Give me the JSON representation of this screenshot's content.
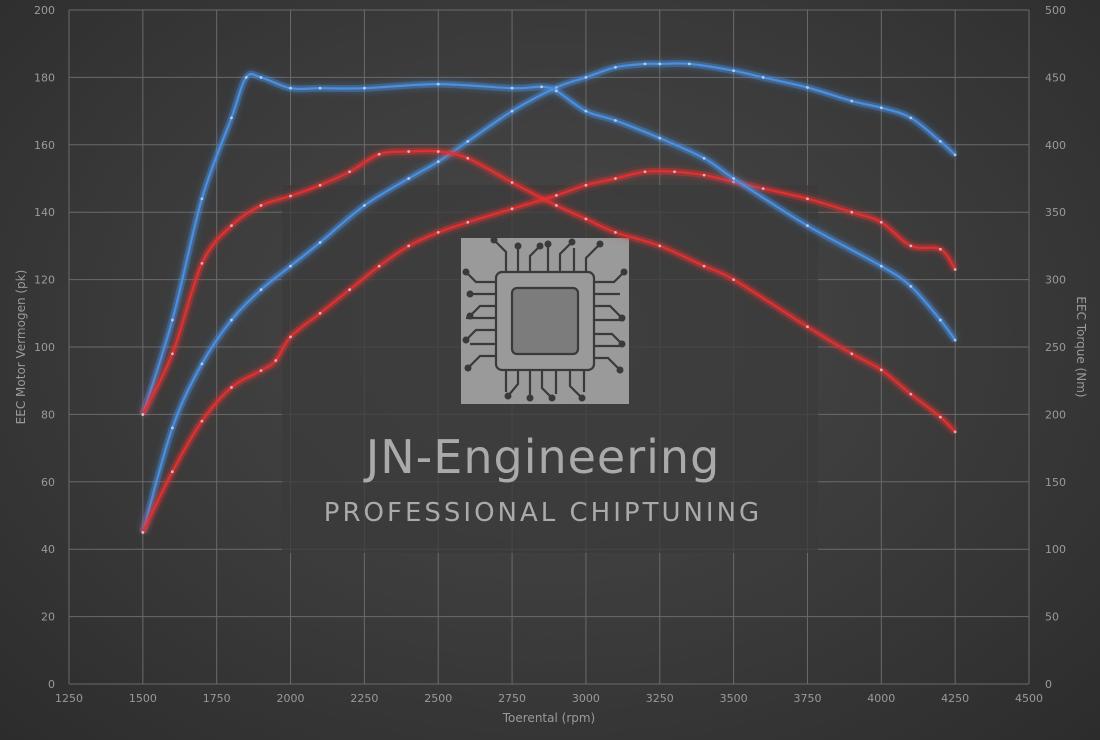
{
  "chart_data": {
    "type": "line",
    "xlabel": "Toerental (rpm)",
    "ylabel_left": "EEC Motor Vermogen (pk)",
    "ylabel_right": "EEC Torque (Nm)",
    "xlim": [
      1250,
      4500
    ],
    "ylim_left": [
      0,
      200
    ],
    "ylim_right": [
      0,
      500
    ],
    "x_ticks": [
      1250,
      1500,
      1750,
      2000,
      2250,
      2500,
      2750,
      3000,
      3250,
      3500,
      3750,
      4000,
      4250,
      4500
    ],
    "y_ticks_left": [
      0,
      20,
      40,
      60,
      80,
      100,
      120,
      140,
      160,
      180,
      200
    ],
    "y_ticks_right": [
      0,
      50,
      100,
      150,
      200,
      250,
      300,
      350,
      400,
      450,
      500
    ],
    "grid": true,
    "series": [
      {
        "color": "#4a8fe0",
        "axis": "left",
        "kind": "power-tuned",
        "x": [
          1500,
          1600,
          1700,
          1800,
          1900,
          2000,
          2100,
          2250,
          2400,
          2500,
          2600,
          2750,
          2900,
          3000,
          3100,
          3200,
          3250,
          3350,
          3500,
          3600,
          3750,
          3900,
          4000,
          4100,
          4200,
          4250
        ],
        "y": [
          45,
          76,
          95,
          108,
          117,
          124,
          131,
          142,
          150,
          155,
          161,
          170,
          177,
          180,
          183,
          184,
          184,
          184,
          182,
          180,
          177,
          173,
          171,
          168,
          161,
          157
        ]
      },
      {
        "color": "#e03030",
        "axis": "left",
        "kind": "power-stock",
        "x": [
          1500,
          1600,
          1700,
          1800,
          1900,
          1950,
          2000,
          2100,
          2200,
          2300,
          2400,
          2500,
          2600,
          2750,
          2900,
          3000,
          3100,
          3200,
          3300,
          3400,
          3500,
          3600,
          3750,
          3900,
          4000,
          4100,
          4200,
          4250
        ],
        "y": [
          45,
          63,
          78,
          88,
          93,
          96,
          103,
          110,
          117,
          124,
          130,
          134,
          137,
          141,
          145,
          148,
          150,
          152,
          152,
          151,
          149,
          147,
          144,
          140,
          137,
          130,
          129,
          123
        ]
      },
      {
        "color": "#4a8fe0",
        "axis": "right",
        "kind": "torque-tuned",
        "x": [
          1500,
          1600,
          1700,
          1800,
          1850,
          1900,
          2000,
          2100,
          2250,
          2500,
          2750,
          2850,
          2900,
          3000,
          3100,
          3250,
          3400,
          3500,
          3750,
          4000,
          4100,
          4200,
          4250
        ],
        "y": [
          200,
          270,
          360,
          420,
          450,
          450,
          442,
          442,
          442,
          445,
          442,
          443,
          440,
          425,
          418,
          405,
          390,
          375,
          340,
          310,
          295,
          270,
          255
        ]
      },
      {
        "color": "#e03030",
        "axis": "right",
        "kind": "torque-stock",
        "x": [
          1500,
          1600,
          1700,
          1800,
          1900,
          2000,
          2100,
          2200,
          2300,
          2400,
          2500,
          2600,
          2750,
          2900,
          3000,
          3100,
          3250,
          3400,
          3500,
          3750,
          3900,
          4000,
          4100,
          4200,
          4250
        ],
        "y": [
          200,
          245,
          312,
          340,
          355,
          362,
          370,
          380,
          393,
          395,
          395,
          390,
          372,
          355,
          345,
          335,
          325,
          310,
          300,
          265,
          245,
          233,
          215,
          198,
          187
        ]
      }
    ]
  },
  "watermark": {
    "title": "JN-Engineering",
    "subtitle": "PROFESSIONAL CHIPTUNING",
    "logo_icon": "circuit-chip-icon"
  }
}
